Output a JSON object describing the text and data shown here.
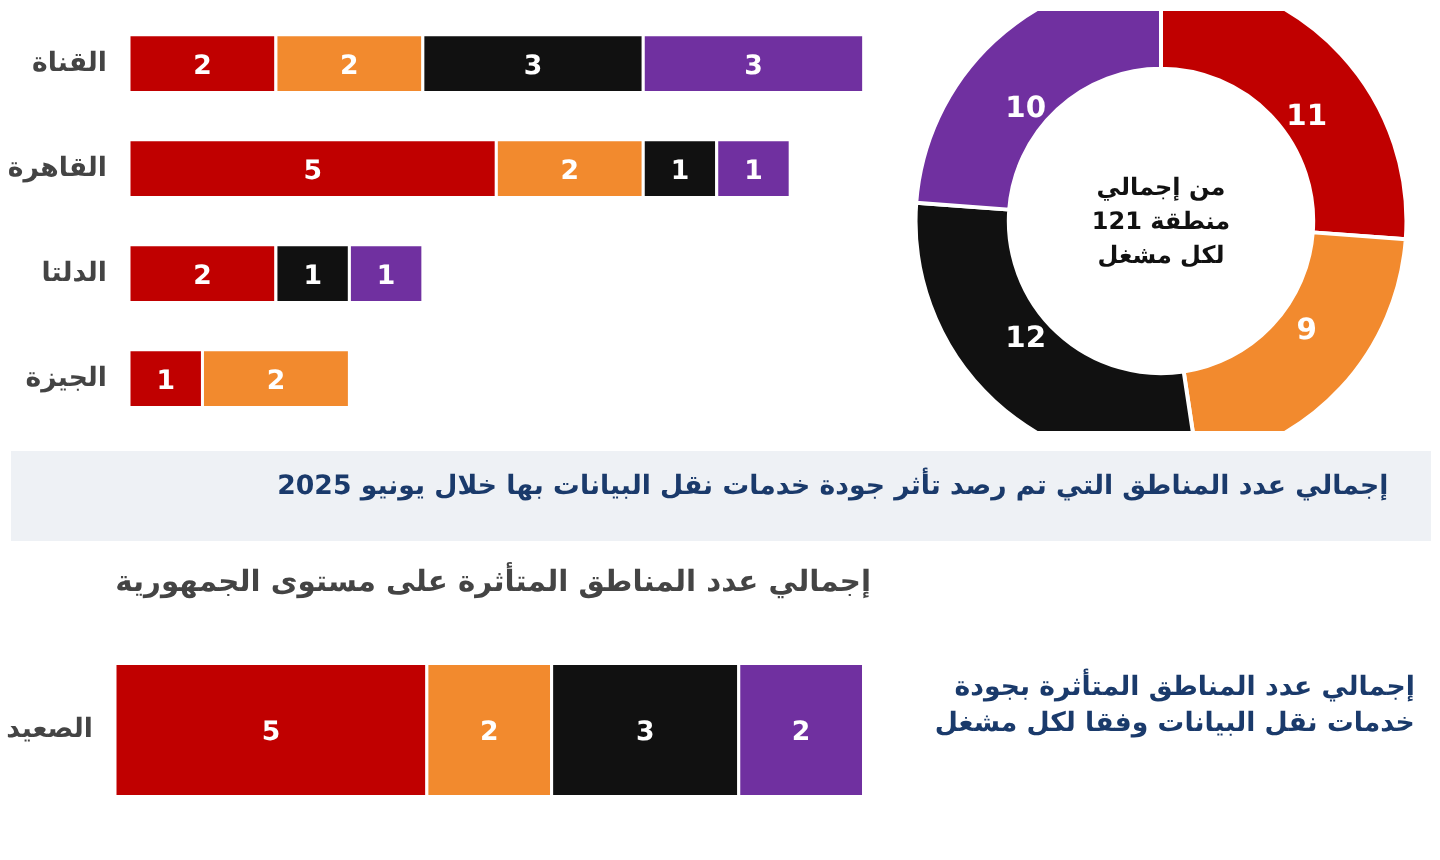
{
  "chart_data": [
    {
      "type": "bar",
      "orientation": "horizontal",
      "stacked": true,
      "data_labels": true,
      "tick_labels": "y",
      "categories": [
        "القناة",
        "القاهرة",
        "الدلتا",
        "الجيزة"
      ],
      "series": [
        {
          "color": "#c00000",
          "values": [
            2,
            5,
            2,
            1
          ]
        },
        {
          "color": "#f28a2e",
          "values": [
            2,
            2,
            null,
            2
          ]
        },
        {
          "color": "#111111",
          "values": [
            3,
            1,
            1,
            null
          ]
        },
        {
          "color": "#7030a0",
          "values": [
            3,
            1,
            1,
            null
          ]
        }
      ]
    },
    {
      "type": "donut",
      "categories": [
        null,
        null,
        null,
        null
      ],
      "values": [
        11,
        9,
        12,
        10
      ],
      "colors": [
        "#c00000",
        "#f28a2e",
        "#111111",
        "#7030a0"
      ],
      "data_labels": true,
      "annotations": [
        "من إجمالي 121 منطقة لكل مشغل"
      ]
    },
    {
      "type": "other",
      "title": "إجمالي عدد المناطق التي تم رصد تأثر جودة خدمات نقل البيانات بها خلال يونيو 2025"
    },
    {
      "type": "bar",
      "orientation": "horizontal",
      "stacked": true,
      "data_labels": true,
      "tick_labels": "y",
      "title": "إجمالي عدد المناطق المتأثرة على مستوى الجمهورية",
      "categories": [
        "الصعيد"
      ],
      "series": [
        {
          "color": "#c00000",
          "values": [
            5
          ]
        },
        {
          "color": "#f28a2e",
          "values": [
            2
          ]
        },
        {
          "color": "#111111",
          "values": [
            3
          ]
        },
        {
          "color": "#7030a0",
          "values": [
            2
          ]
        }
      ]
    },
    {
      "type": "other",
      "title": "إجمالي عدد المناطق المتأثرة بجودة خدمات نقل البيانات وفقا لكل مشغل"
    }
  ]
}
